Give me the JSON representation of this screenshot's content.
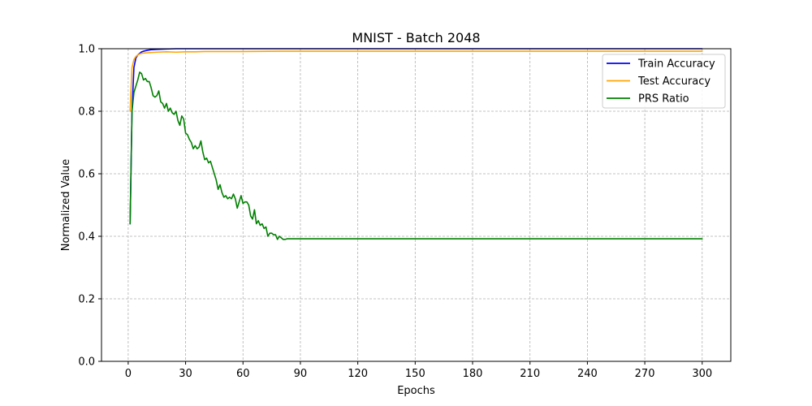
{
  "chart_data": {
    "type": "line",
    "title": "MNIST - Batch 2048",
    "xlabel": "Epochs",
    "ylabel": "Normalized Value",
    "xlim": [
      -13.95,
      314.95
    ],
    "ylim": [
      0.0,
      1.0
    ],
    "xticks": [
      0,
      30,
      60,
      90,
      120,
      150,
      180,
      210,
      240,
      270,
      300
    ],
    "yticks": [
      0.0,
      0.2,
      0.4,
      0.6,
      0.8,
      1.0
    ],
    "ytick_labels": [
      "0.0",
      "0.2",
      "0.4",
      "0.6",
      "0.8",
      "1.0"
    ],
    "grid": true,
    "legend_position": "top-right",
    "series": [
      {
        "name": "Train Accuracy",
        "color": "#0000ff",
        "x": [
          1,
          2,
          3,
          4,
          5,
          6,
          7,
          8,
          10,
          12,
          15,
          20,
          25,
          30,
          40,
          60,
          80,
          100,
          150,
          200,
          250,
          300
        ],
        "y": [
          0.44,
          0.8,
          0.94,
          0.97,
          0.98,
          0.985,
          0.99,
          0.992,
          0.995,
          0.997,
          0.998,
          0.999,
          1.0,
          1.0,
          1.0,
          1.0,
          1.0,
          1.0,
          1.0,
          1.0,
          1.0,
          1.0
        ]
      },
      {
        "name": "Test Accuracy",
        "color": "#ffa500",
        "x": [
          1,
          2,
          3,
          4,
          5,
          6,
          7,
          8,
          10,
          12,
          15,
          20,
          25,
          30,
          35,
          40,
          50,
          60,
          80,
          100,
          150,
          200,
          250,
          300
        ],
        "y": [
          0.8,
          0.94,
          0.965,
          0.975,
          0.98,
          0.983,
          0.985,
          0.986,
          0.987,
          0.988,
          0.989,
          0.99,
          0.989,
          0.99,
          0.99,
          0.991,
          0.991,
          0.991,
          0.992,
          0.992,
          0.992,
          0.992,
          0.992,
          0.992
        ]
      },
      {
        "name": "PRS Ratio",
        "color": "#008000",
        "x": [
          1,
          2,
          3,
          4,
          5,
          6,
          7,
          8,
          9,
          10,
          11,
          12,
          13,
          14,
          15,
          16,
          17,
          18,
          19,
          20,
          21,
          22,
          23,
          24,
          25,
          26,
          27,
          28,
          29,
          30,
          31,
          32,
          33,
          34,
          35,
          36,
          37,
          38,
          39,
          40,
          41,
          42,
          43,
          44,
          45,
          46,
          47,
          48,
          49,
          50,
          51,
          52,
          53,
          54,
          55,
          56,
          57,
          58,
          59,
          60,
          61,
          62,
          63,
          64,
          65,
          66,
          67,
          68,
          69,
          70,
          71,
          72,
          73,
          74,
          75,
          76,
          77,
          78,
          79,
          80,
          81,
          82,
          83,
          90,
          100,
          150,
          200,
          250,
          300
        ],
        "y": [
          0.44,
          0.8,
          0.86,
          0.88,
          0.9,
          0.925,
          0.92,
          0.9,
          0.905,
          0.895,
          0.895,
          0.875,
          0.85,
          0.845,
          0.85,
          0.865,
          0.83,
          0.825,
          0.81,
          0.825,
          0.8,
          0.81,
          0.795,
          0.79,
          0.8,
          0.77,
          0.755,
          0.785,
          0.775,
          0.73,
          0.725,
          0.71,
          0.7,
          0.68,
          0.69,
          0.68,
          0.685,
          0.705,
          0.67,
          0.645,
          0.65,
          0.635,
          0.64,
          0.62,
          0.6,
          0.58,
          0.55,
          0.565,
          0.54,
          0.525,
          0.53,
          0.52,
          0.525,
          0.52,
          0.535,
          0.52,
          0.49,
          0.51,
          0.53,
          0.505,
          0.51,
          0.51,
          0.5,
          0.465,
          0.455,
          0.485,
          0.44,
          0.45,
          0.435,
          0.44,
          0.425,
          0.43,
          0.4,
          0.41,
          0.41,
          0.405,
          0.405,
          0.39,
          0.4,
          0.395,
          0.39,
          0.39,
          0.392,
          0.392,
          0.392,
          0.392,
          0.392,
          0.392,
          0.392
        ]
      }
    ]
  }
}
